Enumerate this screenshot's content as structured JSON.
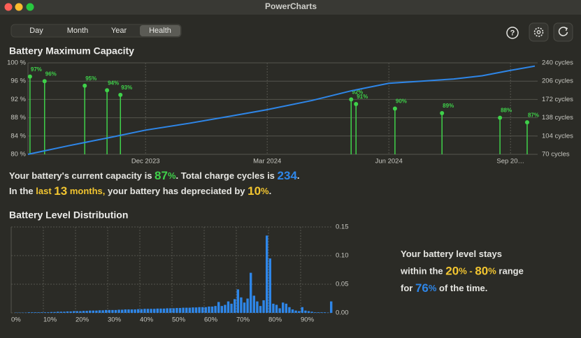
{
  "window": {
    "title": "PowerCharts"
  },
  "tabs": [
    "Day",
    "Month",
    "Year",
    "Health"
  ],
  "selected_tab_index": 3,
  "toolbar": {
    "help": "?"
  },
  "chart_data": [
    {
      "type": "combo",
      "title": "Battery Maximum Capacity",
      "xlim": [
        0,
        12.5
      ],
      "xticks": [
        {
          "value": 2.9,
          "label": "Dec 2023"
        },
        {
          "value": 5.9,
          "label": "Mar 2024"
        },
        {
          "value": 8.9,
          "label": "Jun 2024"
        },
        {
          "value": 11.9,
          "label": "Sep 20…"
        }
      ],
      "ylim": [
        80,
        100
      ],
      "yticks": [
        {
          "value": 80,
          "label": "80 %"
        },
        {
          "value": 84,
          "label": "84 %"
        },
        {
          "value": 88,
          "label": "88 %"
        },
        {
          "value": 92,
          "label": "92 %"
        },
        {
          "value": 96,
          "label": "96 %"
        },
        {
          "value": 100,
          "label": "100 %"
        }
      ],
      "y2lim": [
        70,
        240
      ],
      "y2ticks": [
        {
          "value": 70,
          "label": "70 cycles"
        },
        {
          "value": 104,
          "label": "104 cycles"
        },
        {
          "value": 138,
          "label": "138 cycles"
        },
        {
          "value": 172,
          "label": "172 cycles"
        },
        {
          "value": 206,
          "label": "206 cycles"
        },
        {
          "value": 240,
          "label": "240 cycles"
        }
      ],
      "grid": true,
      "series": [
        {
          "type": "lollipop",
          "color": "#3fd14a",
          "x": [
            0.05,
            0.41,
            1.4,
            1.95,
            2.28,
            7.97,
            8.09,
            9.05,
            10.21,
            11.64,
            12.31
          ],
          "values": [
            97,
            96,
            95,
            94,
            93,
            92,
            91,
            90,
            89,
            88,
            87
          ],
          "value_labels": [
            "97%",
            "96%",
            "95%",
            "94%",
            "93%",
            "92%",
            "91%",
            "90%",
            "89%",
            "88%",
            "87%"
          ]
        },
        {
          "type": "line",
          "axis": "y2",
          "color": "#2e86e8",
          "x": [
            0,
            1,
            2,
            2.9,
            4,
            5,
            5.9,
            7,
            7.97,
            8.9,
            9.7,
            10.5,
            11.2,
            11.9,
            12.5
          ],
          "values": [
            70,
            86,
            101,
            115,
            128,
            141,
            153,
            170,
            188,
            202,
            206,
            210,
            216,
            226,
            234
          ]
        }
      ]
    },
    {
      "type": "histogram",
      "title": "Battery Level Distribution",
      "y_axis_position": "right",
      "xlim": [
        0,
        100
      ],
      "xticks": [
        {
          "value": 0,
          "label": "0%"
        },
        {
          "value": 10,
          "label": "10%"
        },
        {
          "value": 20,
          "label": "20%"
        },
        {
          "value": 30,
          "label": "30%"
        },
        {
          "value": 40,
          "label": "40%"
        },
        {
          "value": 50,
          "label": "50%"
        },
        {
          "value": 60,
          "label": "60%"
        },
        {
          "value": 70,
          "label": "70%"
        },
        {
          "value": 80,
          "label": "80%"
        },
        {
          "value": 90,
          "label": "90%"
        }
      ],
      "ylim": [
        0,
        0.15
      ],
      "yticks": [
        {
          "value": 0,
          "label": "0.00"
        },
        0.05,
        {
          "value": 0.1,
          "label": "0.10"
        },
        0.15
      ],
      "grid": true,
      "color": "#2e86e8",
      "bins": [
        0,
        1,
        2,
        3,
        4,
        5,
        6,
        7,
        8,
        9,
        10,
        11,
        12,
        13,
        14,
        15,
        16,
        17,
        18,
        19,
        20,
        21,
        22,
        23,
        24,
        25,
        26,
        27,
        28,
        29,
        30,
        31,
        32,
        33,
        34,
        35,
        36,
        37,
        38,
        39,
        40,
        41,
        42,
        43,
        44,
        45,
        46,
        47,
        48,
        49,
        50,
        51,
        52,
        53,
        54,
        55,
        56,
        57,
        58,
        59,
        60,
        61,
        62,
        63,
        64,
        65,
        66,
        67,
        68,
        69,
        70,
        71,
        72,
        73,
        74,
        75,
        76,
        77,
        78,
        79,
        80,
        81,
        82,
        83,
        84,
        85,
        86,
        87,
        88,
        89,
        90,
        91,
        92,
        93,
        94,
        95,
        96,
        97,
        98,
        99,
        100
      ],
      "values": [
        0,
        0.0005,
        0.0005,
        0.0005,
        0.0005,
        0.001,
        0.001,
        0.001,
        0.001,
        0.001,
        0.001,
        0.001,
        0.0015,
        0.0015,
        0.002,
        0.002,
        0.002,
        0.0025,
        0.0025,
        0.003,
        0.003,
        0.003,
        0.0035,
        0.0035,
        0.004,
        0.004,
        0.004,
        0.0045,
        0.0045,
        0.005,
        0.005,
        0.005,
        0.005,
        0.0055,
        0.0055,
        0.006,
        0.006,
        0.006,
        0.006,
        0.0065,
        0.0065,
        0.007,
        0.007,
        0.007,
        0.007,
        0.0075,
        0.0075,
        0.0075,
        0.008,
        0.008,
        0.008,
        0.0085,
        0.0085,
        0.009,
        0.009,
        0.009,
        0.0095,
        0.0095,
        0.01,
        0.01,
        0.01,
        0.011,
        0.011,
        0.012,
        0.019,
        0.012,
        0.014,
        0.02,
        0.016,
        0.024,
        0.041,
        0.027,
        0.018,
        0.025,
        0.07,
        0.03,
        0.02,
        0.012,
        0.022,
        0.135,
        0.095,
        0.016,
        0.014,
        0.008,
        0.018,
        0.016,
        0.01,
        0.006,
        0.004,
        0.003,
        0.01,
        0.004,
        0.003,
        0.002,
        0.001,
        0.001,
        0.001,
        0.001,
        0.0005,
        0.02
      ]
    }
  ],
  "capacity_summary": [
    [
      {
        "text": "Your battery's current capacity is "
      },
      {
        "text": "87",
        "color": "#3fd14a",
        "big": true
      },
      {
        "text": "%",
        "color": "#3fd14a"
      },
      {
        "text": ". Total charge cycles is "
      },
      {
        "text": "234",
        "color": "#2e86e8",
        "big": true
      },
      {
        "text": "."
      }
    ],
    [
      {
        "text": "In the "
      },
      {
        "text": "last ",
        "color": "#f2c530"
      },
      {
        "text": "13",
        "color": "#f2c530",
        "big": true
      },
      {
        "text": " months,",
        "color": "#f2c530"
      },
      {
        "text": " your battery has depreciated by "
      },
      {
        "text": "10",
        "color": "#f2c530",
        "big": true
      },
      {
        "text": "%",
        "color": "#f2c530"
      },
      {
        "text": "."
      }
    ]
  ],
  "distribution_summary": [
    [
      {
        "text": "Your battery level stays"
      }
    ],
    [
      {
        "text": "within the "
      },
      {
        "text": "20",
        "color": "#f2c530",
        "big": true
      },
      {
        "text": "%",
        "color": "#f2c530"
      },
      {
        "text": " - ",
        "color": "#f2c530"
      },
      {
        "text": "80",
        "color": "#f2c530",
        "big": true
      },
      {
        "text": "%",
        "color": "#f2c530"
      },
      {
        "text": " range"
      }
    ],
    [
      {
        "text": "for "
      },
      {
        "text": "76",
        "color": "#2e86e8",
        "big": true
      },
      {
        "text": "%",
        "color": "#2e86e8"
      },
      {
        "text": " of the time."
      }
    ]
  ]
}
